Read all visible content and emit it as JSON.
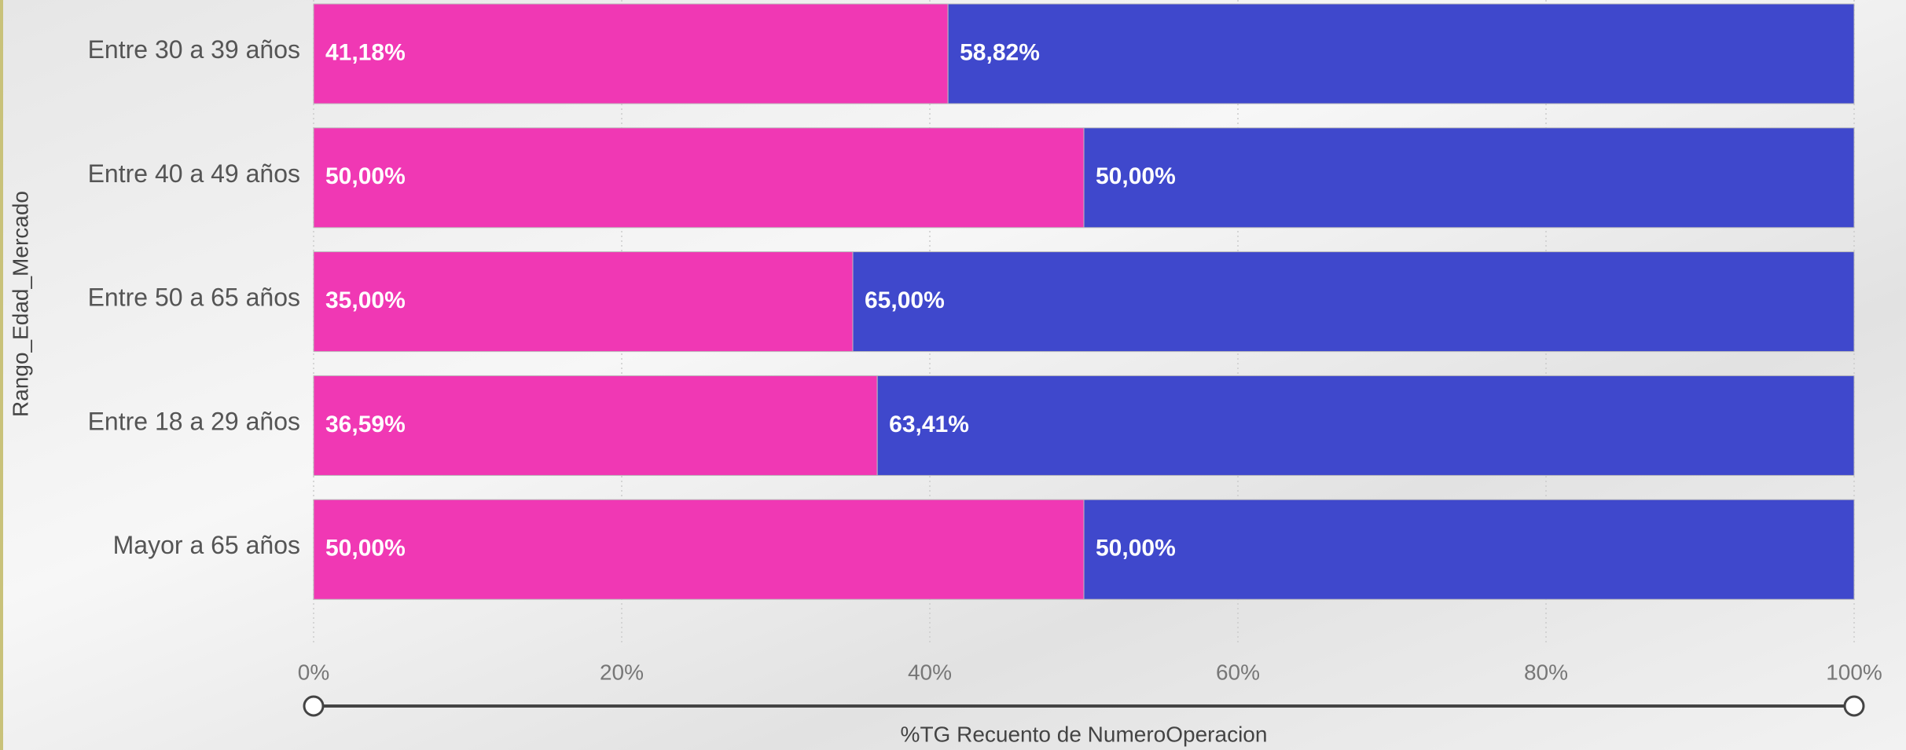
{
  "chart_data": {
    "type": "stacked_barh",
    "categories": [
      "Entre 30 a 39 años",
      "Entre 40 a 49 años",
      "Entre 50 a 65 años",
      "Entre 18 a 29 años",
      "Mayor a 65 años"
    ],
    "series": [
      {
        "color": "#f038b4",
        "values": [
          41.18,
          50,
          35,
          36.59,
          50
        ],
        "value_labels": [
          "41,18%",
          "50,00%",
          "35,00%",
          "36,59%",
          "50,00%"
        ]
      },
      {
        "color": "#3f48cc",
        "values": [
          58.82,
          50,
          65,
          63.41,
          50
        ],
        "value_labels": [
          "58,82%",
          "50,00%",
          "65,00%",
          "63,41%",
          "50,00%"
        ]
      }
    ],
    "xlim": [
      0,
      100
    ],
    "xticks": [
      {
        "value": 0,
        "label": "0%"
      },
      {
        "value": 20,
        "label": "20%"
      },
      {
        "value": 40,
        "label": "40%"
      },
      {
        "value": 60,
        "label": "60%"
      },
      {
        "value": 80,
        "label": "80%"
      },
      {
        "value": 100,
        "label": "100%"
      }
    ],
    "xlabel": "%TG Recuento de NumeroOperacion",
    "ylabel": "Rango_Edad_Mercado",
    "grid": true
  }
}
